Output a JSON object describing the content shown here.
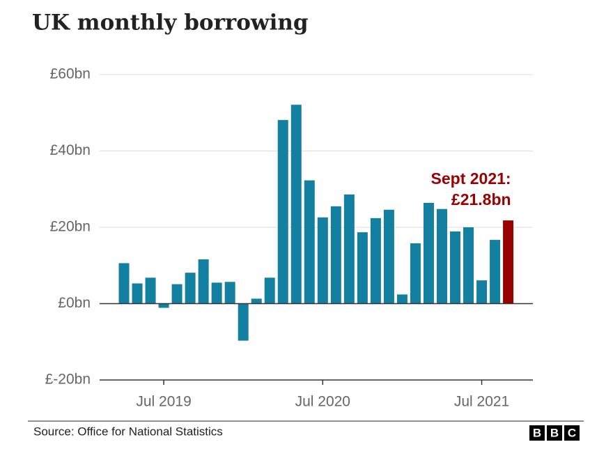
{
  "chart_data": {
    "type": "bar",
    "title": "UK monthly borrowing",
    "categories": [
      null,
      null,
      null,
      "Jul 2019",
      null,
      null,
      null,
      null,
      null,
      null,
      null,
      null,
      null,
      null,
      null,
      "Jul 2020",
      null,
      null,
      null,
      null,
      null,
      null,
      null,
      null,
      null,
      null,
      null,
      "Jul 2021",
      null,
      null
    ],
    "values": [
      10.6,
      5.3,
      6.8,
      -1.1,
      5.1,
      8.1,
      11.6,
      5.5,
      5.7,
      -9.7,
      1.3,
      6.8,
      48.1,
      52.1,
      32.3,
      22.6,
      25.5,
      28.6,
      18.7,
      22.4,
      24.6,
      2.4,
      15.8,
      26.4,
      24.8,
      18.9,
      20.0,
      6.1,
      16.7,
      21.8
    ],
    "colors": [
      "#1380a1",
      "#1380a1",
      "#1380a1",
      "#1380a1",
      "#1380a1",
      "#1380a1",
      "#1380a1",
      "#1380a1",
      "#1380a1",
      "#1380a1",
      "#1380a1",
      "#1380a1",
      "#1380a1",
      "#1380a1",
      "#1380a1",
      "#1380a1",
      "#1380a1",
      "#1380a1",
      "#1380a1",
      "#1380a1",
      "#1380a1",
      "#1380a1",
      "#1380a1",
      "#1380a1",
      "#1380a1",
      "#1380a1",
      "#1380a1",
      "#1380a1",
      "#1380a1",
      "#990000"
    ],
    "ylim": [
      -20,
      60
    ],
    "yticks": [
      {
        "value": -20,
        "label": "£-20bn"
      },
      {
        "value": 0,
        "label": "£0bn"
      },
      {
        "value": 20,
        "label": "£20bn"
      },
      {
        "value": 40,
        "label": "£40bn"
      },
      {
        "value": 60,
        "label": "£60bn"
      }
    ],
    "grid": true,
    "annotation": [
      "Sept 2021:",
      "£21.8bn"
    ],
    "source": "Source: Office for National Statistics",
    "logo": [
      "B",
      "B",
      "C"
    ]
  }
}
